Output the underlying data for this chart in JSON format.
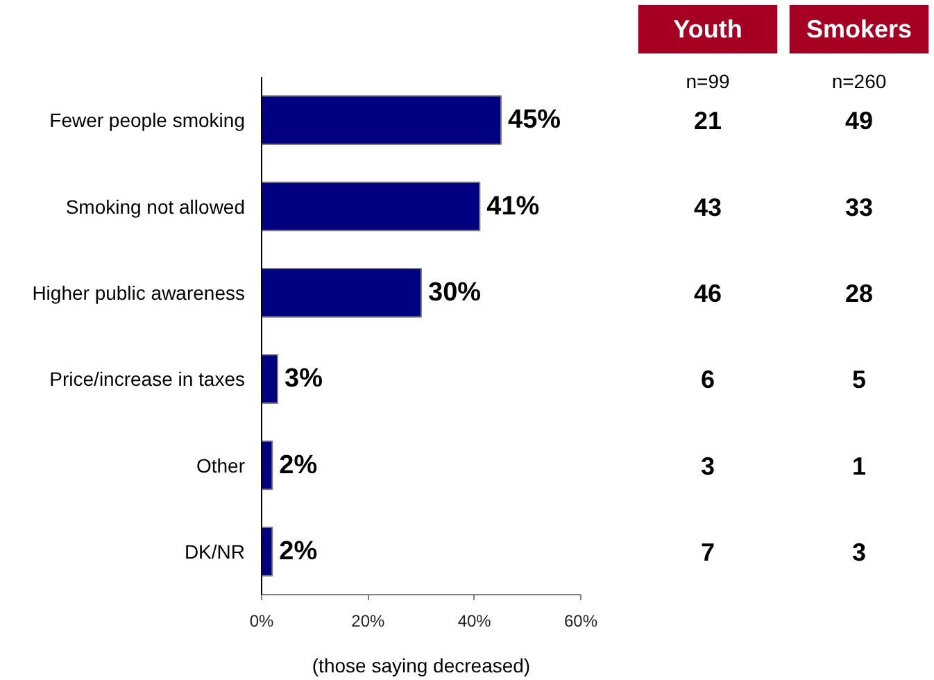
{
  "chart_data": [
    {
      "type": "bar",
      "orientation": "horizontal",
      "categories": [
        "Fewer people smoking",
        "Smoking not allowed",
        "Higher public awareness",
        "Price/increase in taxes",
        "Other",
        "DK/NR"
      ],
      "values": [
        45,
        41,
        30,
        3,
        2,
        2
      ],
      "color": "#000080",
      "value_labels": [
        "45%",
        "41%",
        "30%",
        "3%",
        "2%",
        "2%"
      ],
      "xlim": [
        0,
        60
      ],
      "xticks": [
        {
          "value": 0,
          "label": "0%"
        },
        {
          "value": 20,
          "label": "20%"
        },
        {
          "value": 40,
          "label": "40%"
        },
        {
          "value": 60,
          "label": "60%"
        }
      ],
      "xlabel": "(those saying decreased)"
    },
    {
      "type": "heatmap",
      "categories": [
        "Youth",
        "Smokers"
      ],
      "y_categories": [
        null,
        null,
        null,
        null,
        null,
        null
      ],
      "cells": [
        [
          21,
          49
        ],
        [
          43,
          33
        ],
        [
          46,
          28
        ],
        [
          6,
          5
        ],
        [
          3,
          1
        ],
        [
          7,
          3
        ]
      ],
      "annotations": [
        "n=99",
        "n=260"
      ],
      "data_labels": true
    }
  ]
}
